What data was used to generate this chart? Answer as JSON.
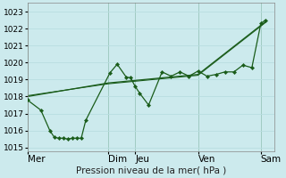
{
  "title": "Pression niveau de la mer( hPa )",
  "bg_color": "#cceaed",
  "grid_color": "#b8dde0",
  "vline_color": "#2d6e2d",
  "line_color": "#1a5c1a",
  "ylim": [
    1014.8,
    1023.5
  ],
  "yticks": [
    1015,
    1016,
    1017,
    1018,
    1019,
    1020,
    1021,
    1022,
    1023
  ],
  "day_labels": [
    "Mer",
    "Dim",
    "Jeu",
    "Ven",
    "Sam"
  ],
  "day_positions": [
    0,
    9,
    12,
    19,
    26
  ],
  "xlim": [
    0,
    27.5
  ],
  "series_detail": {
    "x": [
      0,
      1.5,
      2.5,
      3,
      3.5,
      4,
      4.5,
      5,
      5.5,
      6,
      6.5,
      9.2,
      10,
      11,
      11.5,
      12,
      12.5,
      13.5,
      15,
      16,
      17,
      18,
      19,
      20,
      21,
      22,
      23,
      24,
      25,
      26,
      26.5
    ],
    "y": [
      1017.8,
      1017.2,
      1016.0,
      1015.6,
      1015.55,
      1015.55,
      1015.5,
      1015.55,
      1015.55,
      1015.55,
      1016.6,
      1019.4,
      1019.9,
      1019.15,
      1019.1,
      1018.6,
      1018.2,
      1017.5,
      1019.45,
      1019.2,
      1019.45,
      1019.2,
      1019.5,
      1019.2,
      1019.3,
      1019.45,
      1019.45,
      1019.85,
      1019.7,
      1022.3,
      1022.5
    ]
  },
  "series_trend1": {
    "x": [
      0,
      9,
      19,
      26.5
    ],
    "y": [
      1018.0,
      1018.8,
      1019.3,
      1022.4
    ]
  },
  "series_trend2": {
    "x": [
      0,
      9,
      19,
      26.5
    ],
    "y": [
      1018.05,
      1018.75,
      1019.25,
      1022.35
    ]
  },
  "xlabel_fontsize": 7.5,
  "tick_fontsize": 6.5,
  "linewidth": 0.9,
  "markersize": 2.2
}
